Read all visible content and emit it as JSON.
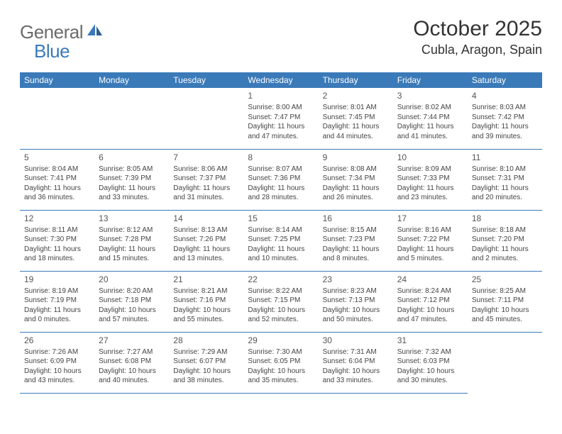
{
  "logo": {
    "main": "General",
    "sub": "Blue"
  },
  "title": "October 2025",
  "location": "Cubla, Aragon, Spain",
  "colors": {
    "header_bg": "#3a7ab8",
    "header_fg": "#ffffff",
    "text": "#333333",
    "logo_main": "#6b6b6b",
    "logo_sub": "#3a7ab8",
    "cell_border": "#3a7ab8"
  },
  "day_headers": [
    "Sunday",
    "Monday",
    "Tuesday",
    "Wednesday",
    "Thursday",
    "Friday",
    "Saturday"
  ],
  "weeks": [
    [
      {
        "blank": true
      },
      {
        "blank": true
      },
      {
        "blank": true
      },
      {
        "num": "1",
        "sunrise": "8:00 AM",
        "sunset": "7:47 PM",
        "daylight": "11 hours and 47 minutes."
      },
      {
        "num": "2",
        "sunrise": "8:01 AM",
        "sunset": "7:45 PM",
        "daylight": "11 hours and 44 minutes."
      },
      {
        "num": "3",
        "sunrise": "8:02 AM",
        "sunset": "7:44 PM",
        "daylight": "11 hours and 41 minutes."
      },
      {
        "num": "4",
        "sunrise": "8:03 AM",
        "sunset": "7:42 PM",
        "daylight": "11 hours and 39 minutes."
      }
    ],
    [
      {
        "num": "5",
        "sunrise": "8:04 AM",
        "sunset": "7:41 PM",
        "daylight": "11 hours and 36 minutes."
      },
      {
        "num": "6",
        "sunrise": "8:05 AM",
        "sunset": "7:39 PM",
        "daylight": "11 hours and 33 minutes."
      },
      {
        "num": "7",
        "sunrise": "8:06 AM",
        "sunset": "7:37 PM",
        "daylight": "11 hours and 31 minutes."
      },
      {
        "num": "8",
        "sunrise": "8:07 AM",
        "sunset": "7:36 PM",
        "daylight": "11 hours and 28 minutes."
      },
      {
        "num": "9",
        "sunrise": "8:08 AM",
        "sunset": "7:34 PM",
        "daylight": "11 hours and 26 minutes."
      },
      {
        "num": "10",
        "sunrise": "8:09 AM",
        "sunset": "7:33 PM",
        "daylight": "11 hours and 23 minutes."
      },
      {
        "num": "11",
        "sunrise": "8:10 AM",
        "sunset": "7:31 PM",
        "daylight": "11 hours and 20 minutes."
      }
    ],
    [
      {
        "num": "12",
        "sunrise": "8:11 AM",
        "sunset": "7:30 PM",
        "daylight": "11 hours and 18 minutes."
      },
      {
        "num": "13",
        "sunrise": "8:12 AM",
        "sunset": "7:28 PM",
        "daylight": "11 hours and 15 minutes."
      },
      {
        "num": "14",
        "sunrise": "8:13 AM",
        "sunset": "7:26 PM",
        "daylight": "11 hours and 13 minutes."
      },
      {
        "num": "15",
        "sunrise": "8:14 AM",
        "sunset": "7:25 PM",
        "daylight": "11 hours and 10 minutes."
      },
      {
        "num": "16",
        "sunrise": "8:15 AM",
        "sunset": "7:23 PM",
        "daylight": "11 hours and 8 minutes."
      },
      {
        "num": "17",
        "sunrise": "8:16 AM",
        "sunset": "7:22 PM",
        "daylight": "11 hours and 5 minutes."
      },
      {
        "num": "18",
        "sunrise": "8:18 AM",
        "sunset": "7:20 PM",
        "daylight": "11 hours and 2 minutes."
      }
    ],
    [
      {
        "num": "19",
        "sunrise": "8:19 AM",
        "sunset": "7:19 PM",
        "daylight": "11 hours and 0 minutes."
      },
      {
        "num": "20",
        "sunrise": "8:20 AM",
        "sunset": "7:18 PM",
        "daylight": "10 hours and 57 minutes."
      },
      {
        "num": "21",
        "sunrise": "8:21 AM",
        "sunset": "7:16 PM",
        "daylight": "10 hours and 55 minutes."
      },
      {
        "num": "22",
        "sunrise": "8:22 AM",
        "sunset": "7:15 PM",
        "daylight": "10 hours and 52 minutes."
      },
      {
        "num": "23",
        "sunrise": "8:23 AM",
        "sunset": "7:13 PM",
        "daylight": "10 hours and 50 minutes."
      },
      {
        "num": "24",
        "sunrise": "8:24 AM",
        "sunset": "7:12 PM",
        "daylight": "10 hours and 47 minutes."
      },
      {
        "num": "25",
        "sunrise": "8:25 AM",
        "sunset": "7:11 PM",
        "daylight": "10 hours and 45 minutes."
      }
    ],
    [
      {
        "num": "26",
        "sunrise": "7:26 AM",
        "sunset": "6:09 PM",
        "daylight": "10 hours and 43 minutes."
      },
      {
        "num": "27",
        "sunrise": "7:27 AM",
        "sunset": "6:08 PM",
        "daylight": "10 hours and 40 minutes."
      },
      {
        "num": "28",
        "sunrise": "7:29 AM",
        "sunset": "6:07 PM",
        "daylight": "10 hours and 38 minutes."
      },
      {
        "num": "29",
        "sunrise": "7:30 AM",
        "sunset": "6:05 PM",
        "daylight": "10 hours and 35 minutes."
      },
      {
        "num": "30",
        "sunrise": "7:31 AM",
        "sunset": "6:04 PM",
        "daylight": "10 hours and 33 minutes."
      },
      {
        "num": "31",
        "sunrise": "7:32 AM",
        "sunset": "6:03 PM",
        "daylight": "10 hours and 30 minutes."
      },
      {
        "blank": true,
        "blank_end": true
      }
    ]
  ]
}
